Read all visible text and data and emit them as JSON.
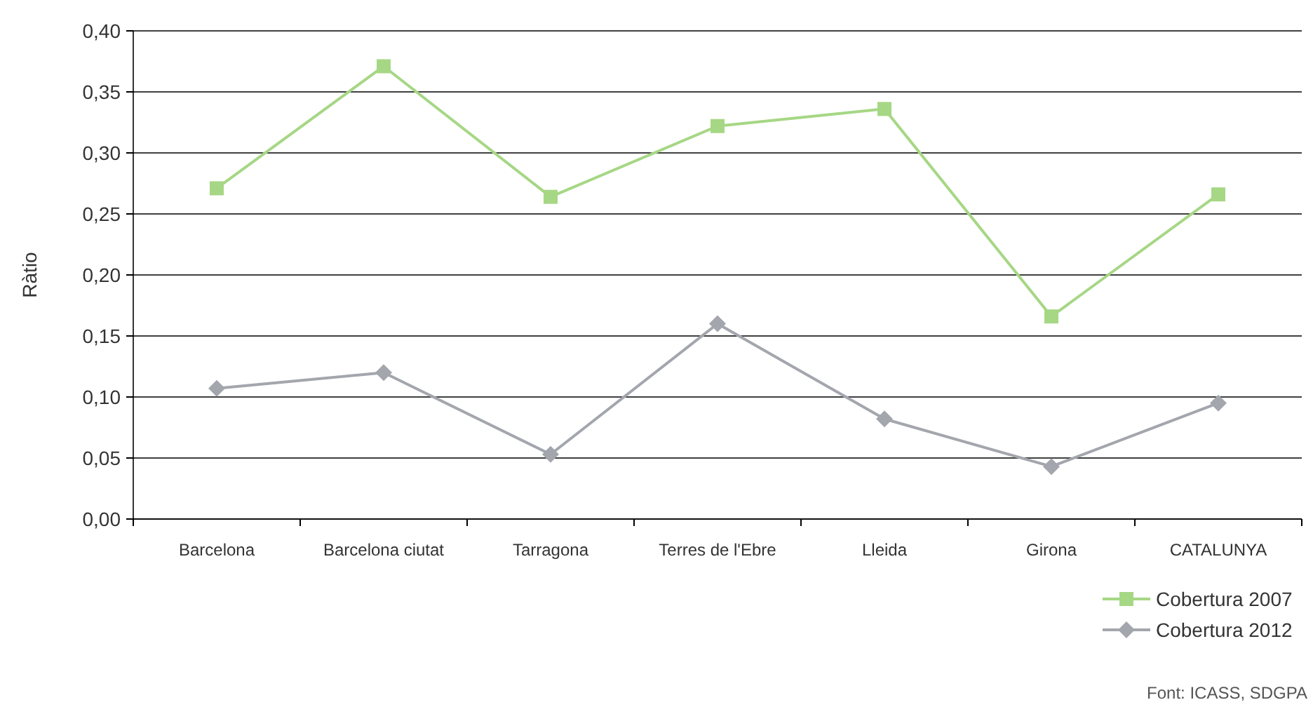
{
  "chart_data": {
    "type": "line",
    "ylabel": "Ràtio",
    "categories": [
      "Barcelona",
      "Barcelona ciutat",
      "Tarragona",
      "Terres de l'Ebre",
      "Lleida",
      "Girona",
      "CATALUNYA"
    ],
    "series": [
      {
        "name": "Cobertura 2007",
        "color": "#a6d785",
        "marker": "square",
        "values": [
          0.271,
          0.371,
          0.264,
          0.322,
          0.336,
          0.166,
          0.266
        ]
      },
      {
        "name": "Cobertura 2012",
        "color": "#a3a6ad",
        "marker": "diamond",
        "values": [
          0.107,
          0.12,
          0.053,
          0.16,
          0.082,
          0.043,
          0.095
        ]
      }
    ],
    "ylim": [
      0,
      0.4
    ],
    "yticks": [
      {
        "value": 0,
        "label": "0,00"
      },
      {
        "value": 0.05,
        "label": "0,05"
      },
      {
        "value": 0.1,
        "label": "0,10"
      },
      {
        "value": 0.15,
        "label": "0,15"
      },
      {
        "value": 0.2,
        "label": "0,20"
      },
      {
        "value": 0.25,
        "label": "0,25"
      },
      {
        "value": 0.3,
        "label": "0,30"
      },
      {
        "value": 0.35,
        "label": "0,35"
      },
      {
        "value": 0.4,
        "label": "0,40"
      }
    ],
    "grid": "y",
    "legend": "bottom right",
    "line_style": "solid",
    "annotations": [
      "Font: ICASS, SDGPA"
    ]
  }
}
